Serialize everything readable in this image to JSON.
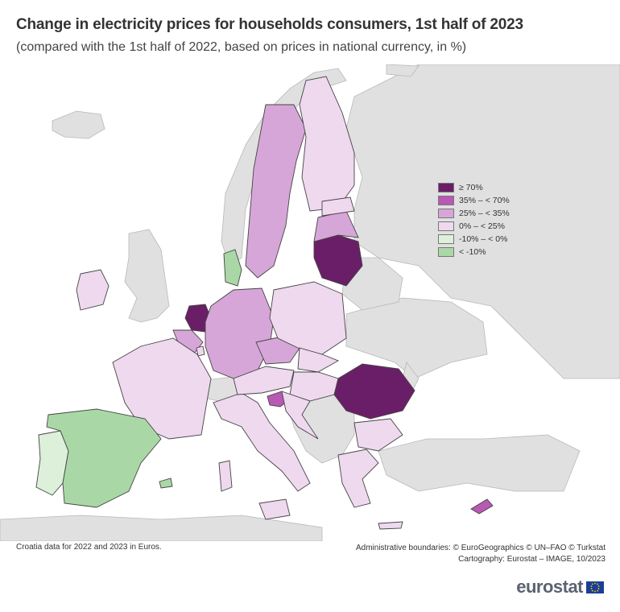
{
  "header": {
    "title": "Change in electricity prices for households consumers, 1st half of 2023",
    "subtitle": "(compared with the 1st half of 2022, based on prices in national currency, in %)"
  },
  "legend": {
    "items": [
      {
        "label": "≥ 70%",
        "color": "#6b1e68"
      },
      {
        "label": "35% – < 70%",
        "color": "#b859b4"
      },
      {
        "label": "25% – < 35%",
        "color": "#d7a6d8"
      },
      {
        "label": "0% – < 25%",
        "color": "#efd9ef"
      },
      {
        "label": "-10% – < 0%",
        "color": "#dcf0da"
      },
      {
        "label": "< -10%",
        "color": "#a9d8a6"
      }
    ]
  },
  "colors": {
    "no_data": "#e0e0e0",
    "sea": "#ffffff",
    "border": "#444444"
  },
  "footer": {
    "note": "Croatia data for 2022 and 2023 in Euros.",
    "credits_line1": "Administrative boundaries: © EuroGeographics © UN–FAO © Turkstat",
    "credits_line2": "Cartography: Eurostat – IMAGE, 10/2023",
    "logo": "eurostat"
  }
}
